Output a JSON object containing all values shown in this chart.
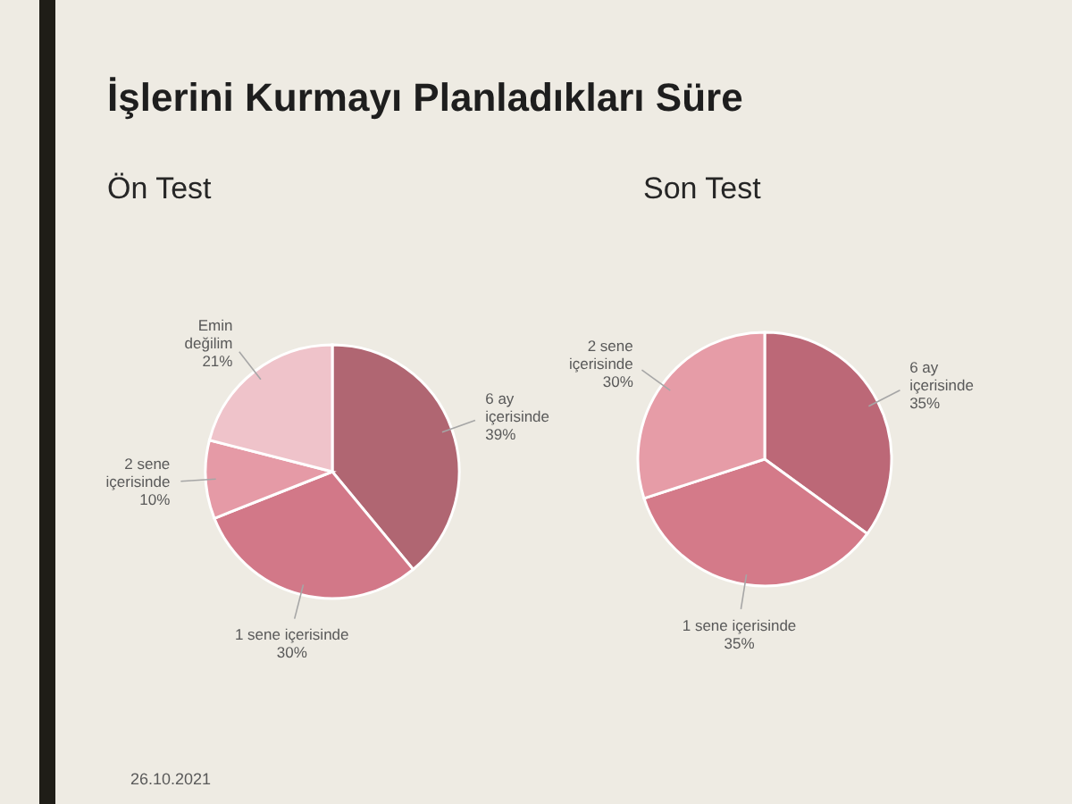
{
  "chart_data": [
    {
      "type": "pie",
      "title": "İşlerini Kurmayı Planladıkları Süre",
      "subtitle": "Ön Test",
      "categories": [
        "6 ay içerisinde",
        "1 sene içerisinde",
        "2 sene içerisinde",
        "Emin değilim"
      ],
      "values": [
        39,
        30,
        10,
        21
      ],
      "colors": [
        "#b06672",
        "#d27888",
        "#e59aa6",
        "#efc3ca"
      ],
      "value_labels": [
        "39%",
        "30%",
        "10%",
        "21%"
      ],
      "annotations": [
        "26.10.2021"
      ]
    },
    {
      "type": "pie",
      "subtitle": "Son Test",
      "categories": [
        "6 ay içerisinde",
        "1 sene içerisinde",
        "2 sene içerisinde"
      ],
      "values": [
        35,
        35,
        30
      ],
      "colors": [
        "#bc6877",
        "#d47a89",
        "#e69ca7"
      ],
      "value_labels": [
        "35%",
        "35%",
        "30%"
      ]
    }
  ]
}
